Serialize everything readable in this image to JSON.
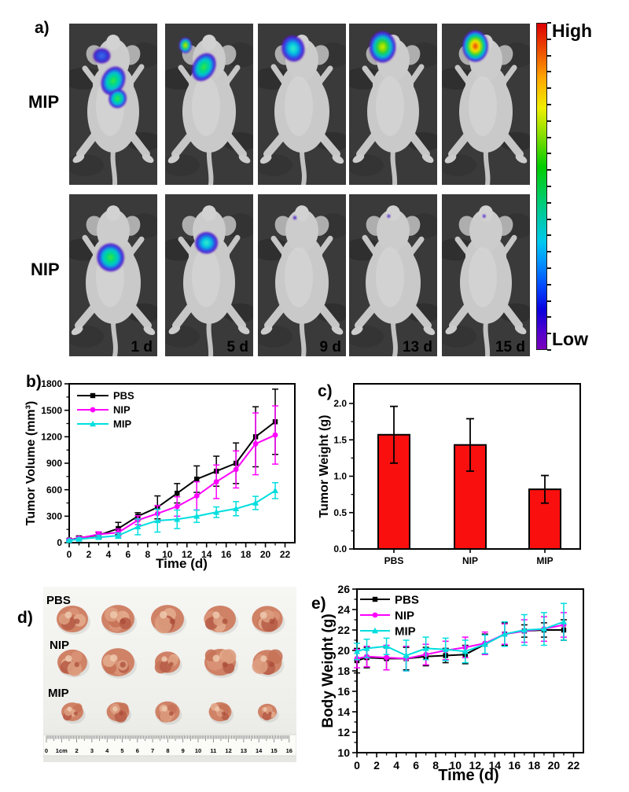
{
  "panels": {
    "a": {
      "label": "a)",
      "colorbar": {
        "high": "High",
        "low": "Low"
      },
      "timepoints": [
        "1 d",
        "5 d",
        "9 d",
        "13 d",
        "15 d"
      ],
      "rows": [
        {
          "label": "MIP",
          "images": [
            {
              "blobs": [
                {
                  "x": 0.37,
                  "y": 0.2,
                  "rx": 0.105,
                  "ry": 0.05,
                  "level": "blue",
                  "rot": 0
                },
                {
                  "x": 0.5,
                  "y": 0.355,
                  "rx": 0.135,
                  "ry": 0.095,
                  "level": "green",
                  "rot": 25
                },
                {
                  "x": 0.55,
                  "y": 0.465,
                  "rx": 0.105,
                  "ry": 0.062,
                  "level": "green",
                  "rot": 15
                }
              ]
            },
            {
              "blobs": [
                {
                  "x": 0.23,
                  "y": 0.135,
                  "rx": 0.075,
                  "ry": 0.05,
                  "level": "yellow",
                  "rot": 0
                },
                {
                  "x": 0.44,
                  "y": 0.27,
                  "rx": 0.13,
                  "ry": 0.095,
                  "level": "green",
                  "rot": 30
                }
              ]
            },
            {
              "blobs": [
                {
                  "x": 0.4,
                  "y": 0.155,
                  "rx": 0.135,
                  "ry": 0.085,
                  "level": "cyan",
                  "rot": -15
                }
              ]
            },
            {
              "blobs": [
                {
                  "x": 0.38,
                  "y": 0.145,
                  "rx": 0.155,
                  "ry": 0.1,
                  "level": "yellow",
                  "rot": 0
                }
              ]
            },
            {
              "blobs": [
                {
                  "x": 0.38,
                  "y": 0.14,
                  "rx": 0.15,
                  "ry": 0.1,
                  "level": "red",
                  "rot": 0
                }
              ]
            }
          ]
        },
        {
          "label": "NIP",
          "images": [
            {
              "blobs": [
                {
                  "x": 0.47,
                  "y": 0.39,
                  "rx": 0.16,
                  "ry": 0.09,
                  "level": "green",
                  "rot": -10
                }
              ]
            },
            {
              "blobs": [
                {
                  "x": 0.47,
                  "y": 0.3,
                  "rx": 0.135,
                  "ry": 0.07,
                  "level": "cyan",
                  "rot": 0
                }
              ]
            },
            {
              "blobs": [
                {
                  "x": 0.42,
                  "y": 0.145,
                  "rx": 0.02,
                  "ry": 0.012,
                  "level": "dot",
                  "rot": 0
                }
              ]
            },
            {
              "blobs": [
                {
                  "x": 0.45,
                  "y": 0.135,
                  "rx": 0.018,
                  "ry": 0.011,
                  "level": "dot",
                  "rot": 0
                }
              ]
            },
            {
              "blobs": [
                {
                  "x": 0.48,
                  "y": 0.135,
                  "rx": 0.018,
                  "ry": 0.011,
                  "level": "dot",
                  "rot": 0
                }
              ]
            }
          ]
        }
      ]
    },
    "b": {
      "label": "b)"
    },
    "c": {
      "label": "c)"
    },
    "d": {
      "label": "d)",
      "rows": [
        {
          "label": "PBS",
          "y": 41,
          "sizes": [
            1.0,
            1.05,
            1.05,
            1.0,
            0.98
          ]
        },
        {
          "label": "NIP",
          "y": 96,
          "sizes": [
            0.95,
            1.05,
            0.8,
            1.0,
            0.92
          ]
        },
        {
          "label": "MIP",
          "y": 159,
          "sizes": [
            0.7,
            0.72,
            0.78,
            0.72,
            0.6
          ]
        }
      ],
      "ruler_labels": [
        "0",
        "1cm",
        "2",
        "3",
        "4",
        "5",
        "6",
        "7",
        "8",
        "9",
        "10",
        "11",
        "12",
        "13",
        "14",
        "15",
        "16"
      ]
    },
    "e": {
      "label": "e)"
    }
  },
  "chart_data": [
    {
      "id": "tumor_volume",
      "type": "line",
      "title": "",
      "xlabel": "Time (d)",
      "ylabel": "Tumor Volume (mm³)",
      "xlim": [
        0,
        23
      ],
      "ylim": [
        0,
        1800
      ],
      "grid": false,
      "legend_position": "top-left",
      "xticks": [
        0,
        2,
        4,
        6,
        8,
        10,
        12,
        14,
        16,
        18,
        20,
        22
      ],
      "xticklabels": [
        "0",
        "2",
        "4",
        "6",
        "8",
        "10",
        "12",
        "14",
        "16",
        "18",
        "20",
        "22"
      ],
      "yticks": [
        0,
        300,
        600,
        900,
        1200,
        1500,
        1800
      ],
      "yticklabels": [
        "0",
        "300",
        "600",
        "900",
        "1200",
        "1500",
        "1800"
      ],
      "x": [
        0,
        1,
        3,
        5,
        7,
        9,
        11,
        13,
        15,
        17,
        19,
        21
      ],
      "series": [
        {
          "name": "PBS",
          "color": "#000000",
          "marker": "square",
          "values": [
            30,
            55,
            85,
            160,
            300,
            400,
            560,
            720,
            810,
            900,
            1200,
            1370
          ],
          "errors": [
            12,
            20,
            30,
            70,
            40,
            130,
            110,
            150,
            170,
            230,
            340,
            370
          ]
        },
        {
          "name": "NIP",
          "color": "#ff00ff",
          "marker": "circle",
          "values": [
            30,
            50,
            95,
            115,
            255,
            330,
            410,
            530,
            690,
            830,
            1120,
            1220
          ],
          "errors": [
            12,
            18,
            28,
            40,
            50,
            90,
            110,
            160,
            190,
            210,
            350,
            330
          ]
        },
        {
          "name": "MIP",
          "color": "#00dede",
          "marker": "triangle",
          "values": [
            25,
            40,
            60,
            80,
            180,
            250,
            265,
            300,
            345,
            385,
            450,
            590
          ],
          "errors": [
            10,
            14,
            22,
            30,
            90,
            130,
            105,
            70,
            60,
            80,
            75,
            90
          ]
        }
      ]
    },
    {
      "id": "tumor_weight",
      "type": "bar",
      "title": "",
      "xlabel": "",
      "ylabel": "Tumor Weight (g)",
      "categories": [
        "PBS",
        "NIP",
        "MIP"
      ],
      "values": [
        1.57,
        1.43,
        0.82
      ],
      "errors": [
        0.39,
        0.36,
        0.19
      ],
      "ylim": [
        0,
        2.27
      ],
      "grid": false,
      "yticks": [
        0,
        0.5,
        1,
        1.5,
        2
      ],
      "yticklabels": [
        "0.0",
        "0.5",
        "1.0",
        "1.5",
        "2.0"
      ],
      "bar_color": "#fa0f0f"
    },
    {
      "id": "body_weight",
      "type": "line",
      "title": "",
      "xlabel": "Time (d)",
      "ylabel": "Body Weight (g)",
      "xlim": [
        0,
        23
      ],
      "ylim": [
        10,
        26
      ],
      "grid": false,
      "legend_position": "top-left",
      "xticks": [
        0,
        2,
        4,
        6,
        8,
        10,
        12,
        14,
        16,
        18,
        20,
        22
      ],
      "xticklabels": [
        "0",
        "2",
        "4",
        "6",
        "8",
        "10",
        "12",
        "14",
        "16",
        "18",
        "20",
        "22"
      ],
      "yticks": [
        10,
        12,
        14,
        16,
        18,
        20,
        22,
        24,
        26
      ],
      "yticklabels": [
        "10",
        "12",
        "14",
        "16",
        "18",
        "20",
        "22",
        "24",
        "26"
      ],
      "x": [
        0,
        1,
        3,
        5,
        7,
        9,
        11,
        13,
        15,
        17,
        19,
        21
      ],
      "series": [
        {
          "name": "PBS",
          "color": "#000000",
          "marker": "square",
          "values": [
            19,
            19.3,
            19.2,
            19.2,
            19.4,
            19.5,
            19.6,
            20.6,
            21.6,
            21.9,
            22,
            22
          ],
          "errors": [
            1.2,
            1,
            1.1,
            1.1,
            0.9,
            0.7,
            0.9,
            1,
            1.1,
            0.6,
            0.7,
            1
          ]
        },
        {
          "name": "NIP",
          "color": "#ff00ff",
          "marker": "circle",
          "values": [
            19.2,
            19.4,
            19.3,
            19.2,
            19.6,
            20,
            20.3,
            20.7,
            21.6,
            21.9,
            22.1,
            22.5
          ],
          "errors": [
            0.9,
            1,
            1.2,
            1.2,
            1,
            0.9,
            1,
            1.1,
            1,
            1.1,
            1.2,
            1.2
          ]
        },
        {
          "name": "MIP",
          "color": "#00dede",
          "marker": "triangle",
          "values": [
            19.9,
            20.2,
            20.4,
            19.5,
            20.2,
            20.1,
            19.9,
            20.6,
            21.6,
            22,
            22.1,
            22.8
          ],
          "errors": [
            0.8,
            0.9,
            0.8,
            1.5,
            1.1,
            1.1,
            1.1,
            0.9,
            1.2,
            1.5,
            1.6,
            1.8
          ]
        }
      ]
    }
  ],
  "colors": {
    "pbs": "#000000",
    "nip": "#ff00ff",
    "mip": "#00dede",
    "bar": "#fa0f0f"
  }
}
